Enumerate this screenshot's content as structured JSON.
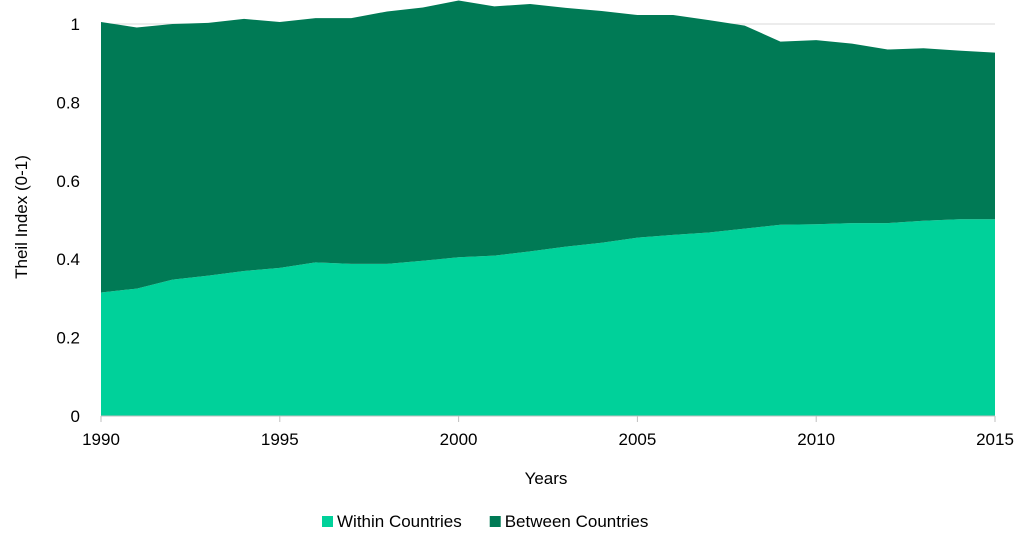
{
  "chart_data": {
    "type": "area",
    "stacked": true,
    "xlabel": "Years",
    "ylabel": "Theil Index (0-1)",
    "xlim": [
      1990,
      2015
    ],
    "ylim": [
      0,
      1
    ],
    "x_ticks": [
      "1990",
      "1995",
      "2000",
      "2005",
      "2010",
      "2015"
    ],
    "y_ticks": [
      "0",
      "0.2",
      "0.4",
      "0.6",
      "0.8",
      "1"
    ],
    "grid": "horizontal",
    "legend_position": "bottom",
    "x": [
      1990,
      1991,
      1992,
      1993,
      1994,
      1995,
      1996,
      1997,
      1998,
      1999,
      2000,
      2001,
      2002,
      2003,
      2004,
      2005,
      2006,
      2007,
      2008,
      2009,
      2010,
      2011,
      2012,
      2013,
      2014,
      2015
    ],
    "series": [
      {
        "name": "Within Countries",
        "color": "#00d19a",
        "values": [
          0.315,
          0.325,
          0.348,
          0.358,
          0.37,
          0.378,
          0.392,
          0.388,
          0.388,
          0.396,
          0.405,
          0.409,
          0.42,
          0.432,
          0.442,
          0.455,
          0.462,
          0.468,
          0.478,
          0.488,
          0.489,
          0.492,
          0.492,
          0.498,
          0.502,
          0.502
        ]
      },
      {
        "name": "Between Countries",
        "color": "#007a55",
        "values": [
          0.69,
          0.666,
          0.652,
          0.645,
          0.643,
          0.627,
          0.623,
          0.627,
          0.644,
          0.646,
          0.655,
          0.636,
          0.631,
          0.609,
          0.591,
          0.568,
          0.561,
          0.542,
          0.518,
          0.467,
          0.47,
          0.458,
          0.443,
          0.44,
          0.43,
          0.425
        ]
      }
    ]
  }
}
